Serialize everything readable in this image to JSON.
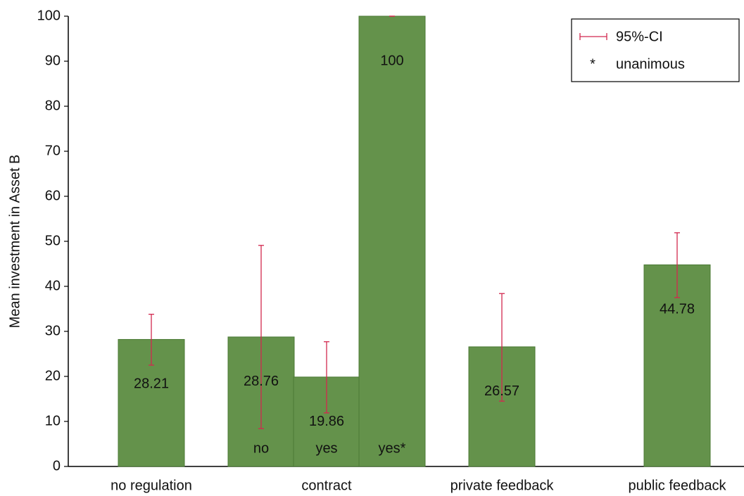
{
  "chart_data": {
    "type": "bar",
    "y_label": "Mean investment in Asset B",
    "ylim": [
      0,
      100
    ],
    "yticks": [
      0,
      10,
      20,
      30,
      40,
      50,
      60,
      70,
      80,
      90,
      100
    ],
    "color": "#64924b",
    "error_color": "#d2284f",
    "groups": [
      {
        "name": "no regulation",
        "bars": [
          {
            "label": null,
            "value": 28.21,
            "ci": [
              22.5,
              33.8
            ]
          }
        ]
      },
      {
        "name": "contract",
        "bars": [
          {
            "label": "no",
            "value": 28.76,
            "ci": [
              8.4,
              49.1
            ]
          },
          {
            "label": "yes",
            "value": 19.86,
            "ci": [
              11.9,
              27.7
            ]
          },
          {
            "label": "yes*",
            "value": 100,
            "ci": [
              100,
              100
            ]
          }
        ]
      },
      {
        "name": "private feedback",
        "bars": [
          {
            "label": null,
            "value": 26.57,
            "ci": [
              14.5,
              38.4
            ]
          }
        ]
      },
      {
        "name": "public feedback",
        "bars": [
          {
            "label": null,
            "value": 44.78,
            "ci": [
              37.5,
              51.9
            ]
          }
        ]
      }
    ],
    "legend": {
      "ci_label": "95%-CI",
      "unanimous_marker": "*",
      "unanimous_label": "unanimous"
    }
  }
}
